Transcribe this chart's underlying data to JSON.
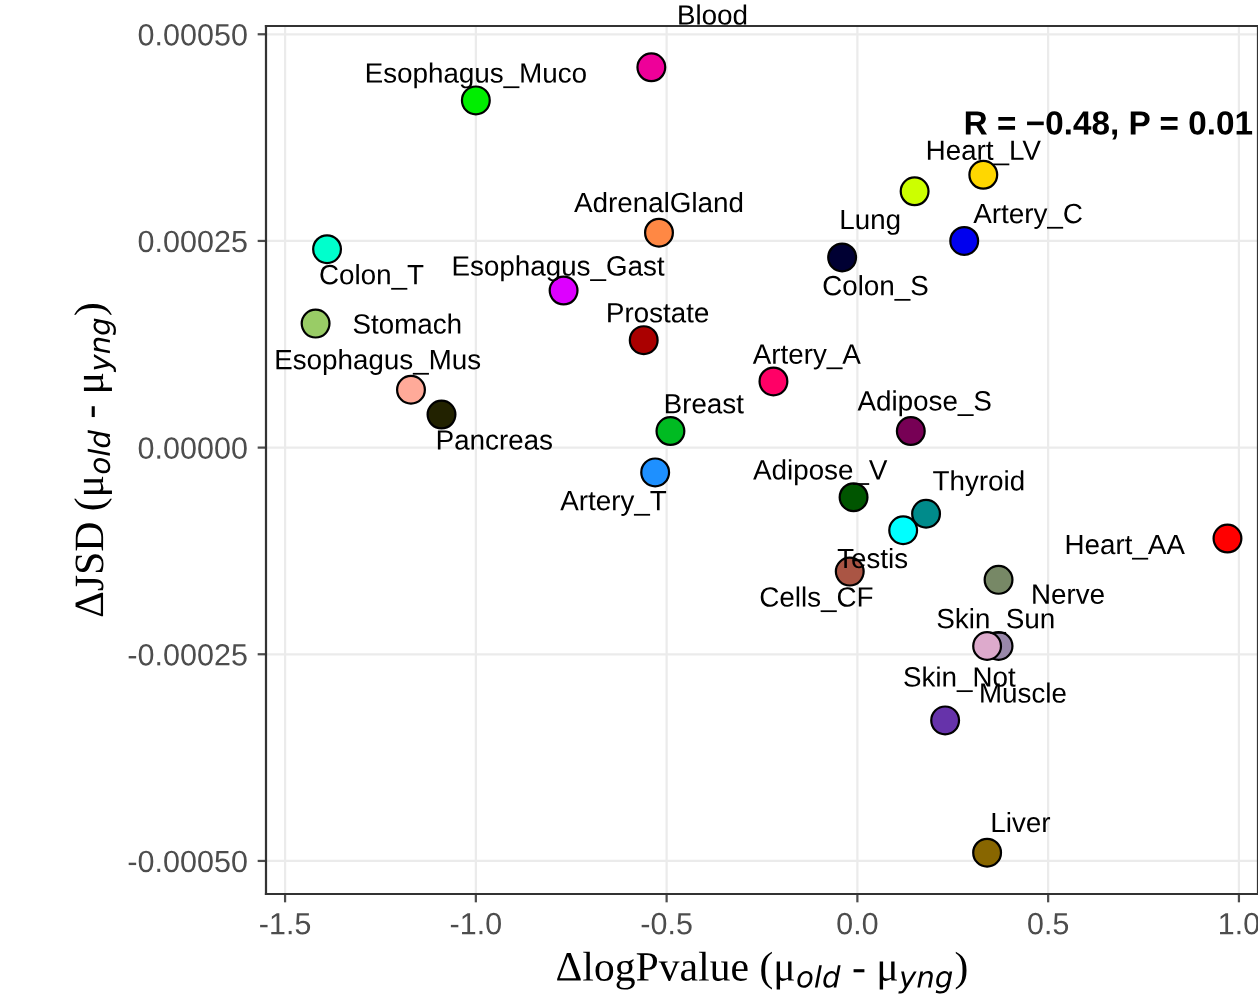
{
  "chart_data": {
    "type": "scatter",
    "xlabel": "ΔlogPvalue (μ$_{old}$ - μ$_{yng}$)",
    "ylabel": "ΔJSD (μ$_{old}$ - μ$_{yng}$)",
    "annotations": [
      "R = −0.48, P = 0.01"
    ],
    "xlim": [
      -1.55,
      1.05
    ],
    "ylim": [
      -0.00054,
      0.00051
    ],
    "xticks": [
      {
        "value": -1.5,
        "label": "-1.5"
      },
      {
        "value": -1.0,
        "label": "-1.0"
      },
      {
        "value": -0.5,
        "label": "-0.5"
      },
      {
        "value": 0.0,
        "label": "0.0"
      },
      {
        "value": 0.5,
        "label": "0.5"
      },
      {
        "value": 1.0,
        "label": "1.0"
      }
    ],
    "yticks": [
      {
        "value": -0.0005,
        "label": "-0.00050"
      },
      {
        "value": -0.00025,
        "label": "-0.00025"
      },
      {
        "value": 0.0,
        "label": "0.00000"
      },
      {
        "value": 0.00025,
        "label": "0.00025"
      },
      {
        "value": 0.0005,
        "label": "0.00050"
      }
    ],
    "grid": true,
    "legend": false,
    "marker": "circle",
    "series": [
      {
        "name": "Blood",
        "color": "#ee0099",
        "x": [
          -0.54
        ],
        "values": [
          0.00046
        ]
      },
      {
        "name": "Esophagus_Muco",
        "color": "#00ee00",
        "x": [
          -1.0
        ],
        "values": [
          0.00042
        ]
      },
      {
        "name": "Heart_LV",
        "color": "#ffd700",
        "x": [
          0.33
        ],
        "values": [
          0.00033
        ]
      },
      {
        "name": "Lung",
        "color": "#ccff00",
        "x": [
          0.15
        ],
        "values": [
          0.00031
        ]
      },
      {
        "name": "Artery_C",
        "color": "#0000ee",
        "x": [
          0.28
        ],
        "values": [
          0.00025
        ]
      },
      {
        "name": "Colon_S",
        "color": "#000033",
        "x": [
          -0.04
        ],
        "values": [
          0.00023
        ]
      },
      {
        "name": "AdrenalGland",
        "color": "#ff8844",
        "x": [
          -0.52
        ],
        "values": [
          0.00026
        ]
      },
      {
        "name": "Colon_T",
        "color": "#00ffcc",
        "x": [
          -1.39
        ],
        "values": [
          0.00024
        ]
      },
      {
        "name": "Esophagus_Gast",
        "color": "#dd00ff",
        "x": [
          -0.77
        ],
        "values": [
          0.00019
        ]
      },
      {
        "name": "Stomach",
        "color": "#99cc66",
        "x": [
          -1.42
        ],
        "values": [
          0.00015
        ]
      },
      {
        "name": "Prostate",
        "color": "#aa0000",
        "x": [
          -0.56
        ],
        "values": [
          0.00013
        ]
      },
      {
        "name": "Esophagus_Mus",
        "color": "#ffaa99",
        "x": [
          -1.17
        ],
        "values": [
          7e-05
        ]
      },
      {
        "name": "Pancreas",
        "color": "#222200",
        "x": [
          -1.09
        ],
        "values": [
          4e-05
        ]
      },
      {
        "name": "Artery_A",
        "color": "#ff0066",
        "x": [
          -0.22
        ],
        "values": [
          8e-05
        ]
      },
      {
        "name": "Adipose_S",
        "color": "#770055",
        "x": [
          0.14
        ],
        "values": [
          2e-05
        ]
      },
      {
        "name": "Breast",
        "color": "#00bb22",
        "x": [
          -0.49
        ],
        "values": [
          2e-05
        ]
      },
      {
        "name": "Artery_T",
        "color": "#1e90ff",
        "x": [
          -0.53
        ],
        "values": [
          -3e-05
        ]
      },
      {
        "name": "Adipose_V",
        "color": "#005500",
        "x": [
          -0.01
        ],
        "values": [
          -6e-05
        ]
      },
      {
        "name": "Thyroid",
        "color": "#008b8b",
        "x": [
          0.18
        ],
        "values": [
          -8e-05
        ]
      },
      {
        "name": "Testis",
        "color": "#00ffff",
        "x": [
          0.12
        ],
        "values": [
          -0.0001
        ]
      },
      {
        "name": "Cells_CF",
        "color": "#aa5544",
        "x": [
          -0.02
        ],
        "values": [
          -0.00015
        ]
      },
      {
        "name": "Heart_AA",
        "color": "#ff0000",
        "x": [
          0.97
        ],
        "values": [
          -0.00011
        ]
      },
      {
        "name": "Nerve",
        "color": "#778866",
        "x": [
          0.37
        ],
        "values": [
          -0.00016
        ]
      },
      {
        "name": "Skin_Sun",
        "color": "#9988aa",
        "x": [
          0.37
        ],
        "values": [
          -0.00024
        ]
      },
      {
        "name": "Skin_Not",
        "color": "#ddaacc",
        "x": [
          0.34
        ],
        "values": [
          -0.00024
        ]
      },
      {
        "name": "Muscle",
        "color": "#6633aa",
        "x": [
          0.23
        ],
        "values": [
          -0.00033
        ]
      },
      {
        "name": "Liver",
        "color": "#886600",
        "x": [
          0.34
        ],
        "values": [
          -0.00049
        ]
      }
    ]
  }
}
